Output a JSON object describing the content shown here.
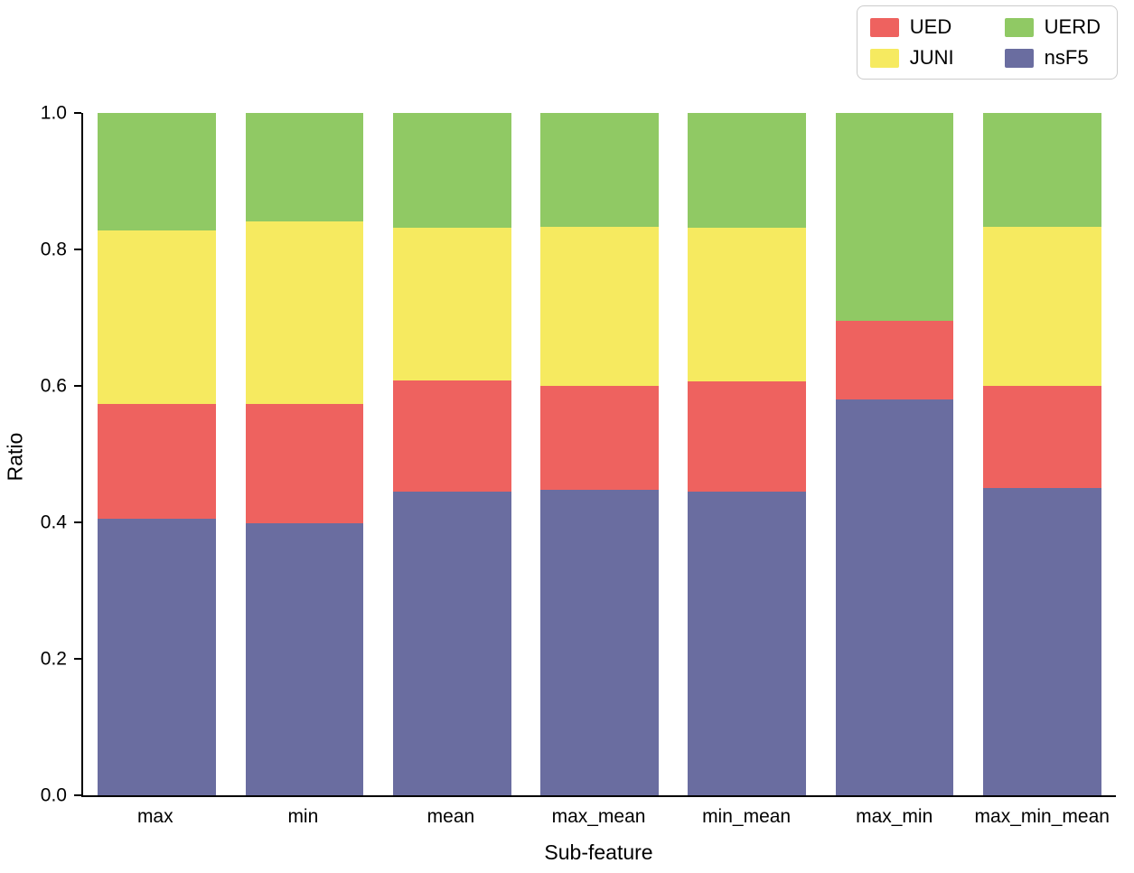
{
  "chart_data": {
    "type": "bar",
    "stacked": true,
    "title": "",
    "xlabel": "Sub-feature",
    "ylabel": "Ratio",
    "ylim": [
      0,
      1
    ],
    "yticks": [
      "0.0",
      "0.2",
      "0.4",
      "0.6",
      "0.8",
      "1.0"
    ],
    "grid": false,
    "legend_position": "top-right",
    "categories": [
      "max",
      "min",
      "mean",
      "max_mean",
      "min_mean",
      "max_min",
      "max_min_mean"
    ],
    "series": [
      {
        "name": "nsF5",
        "color": "#6a6da0",
        "values": [
          0.405,
          0.399,
          0.445,
          0.448,
          0.445,
          0.58,
          0.45
        ]
      },
      {
        "name": "UED",
        "color": "#ee625f",
        "values": [
          0.168,
          0.174,
          0.163,
          0.152,
          0.162,
          0.116,
          0.15
        ]
      },
      {
        "name": "JUNI",
        "color": "#f6ea60",
        "values": [
          0.255,
          0.268,
          0.224,
          0.233,
          0.225,
          0.0,
          0.233
        ]
      },
      {
        "name": "UERD",
        "color": "#90c964",
        "values": [
          0.172,
          0.159,
          0.168,
          0.167,
          0.168,
          0.304,
          0.167
        ]
      }
    ],
    "legend": [
      {
        "label": "UED",
        "color": "#ee625f"
      },
      {
        "label": "JUNI",
        "color": "#f6ea60"
      },
      {
        "label": "UERD",
        "color": "#90c964"
      },
      {
        "label": "nsF5",
        "color": "#6a6da0"
      }
    ]
  }
}
